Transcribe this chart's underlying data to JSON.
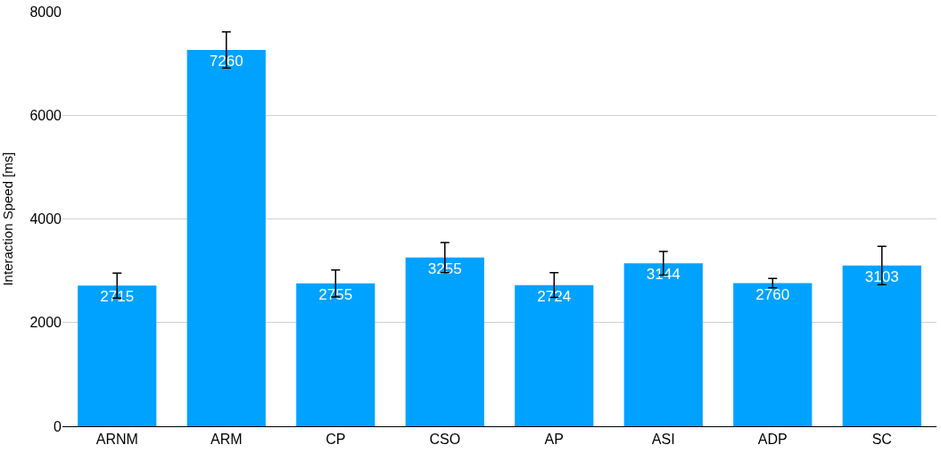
{
  "chart_data": {
    "type": "bar",
    "ylabel": "Interaction Speed [ms]",
    "categories": [
      "ARNM",
      "ARM",
      "CP",
      "CSO",
      "AP",
      "ASI",
      "ADP",
      "SC"
    ],
    "values": [
      2715,
      7260,
      2755,
      3255,
      2724,
      3144,
      2760,
      3103
    ],
    "errors": [
      240,
      350,
      260,
      290,
      240,
      230,
      90,
      370
    ],
    "color": "#00a2ff",
    "ylim": [
      0,
      8000
    ],
    "yticks": [
      0,
      2000,
      4000,
      6000,
      8000
    ],
    "grid": "y",
    "data_labels": true
  }
}
